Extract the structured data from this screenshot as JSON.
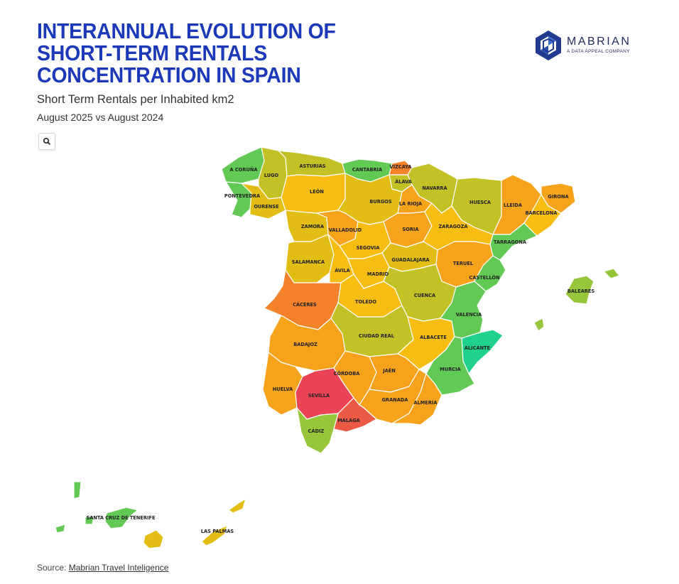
{
  "header": {
    "title": "INTERANNUAL EVOLUTION OF SHORT-TERM RENTALS CONCENTRATION IN SPAIN",
    "subtitle": "Short Term Rentals per Inhabited km2",
    "period": "August 2025 vs August 2024"
  },
  "logo": {
    "name": "MABRIAN",
    "tagline": "A DATA APPEAL COMPANY",
    "color": "#1f3a8f"
  },
  "toolbar": {
    "search_icon": "magnifier-icon"
  },
  "source": {
    "prefix": "Source: ",
    "link_text": "Mabrian Travel Inteligence"
  },
  "palette": {
    "teal": "#1fd18b",
    "green": "#62c955",
    "yellowgreen": "#97c63a",
    "olive": "#c2c226",
    "mustard": "#e2bd14",
    "amber": "#f7bd10",
    "orange": "#f7a21b",
    "darkorange": "#f3822b",
    "coral": "#ec5a45",
    "red": "#ea4356"
  },
  "provinces": [
    {
      "name": "A CORUÑA",
      "color": "green"
    },
    {
      "name": "LUGO",
      "color": "olive"
    },
    {
      "name": "ASTURIAS",
      "color": "olive"
    },
    {
      "name": "CANTABRIA",
      "color": "green"
    },
    {
      "name": "VIZCAYA",
      "color": "darkorange"
    },
    {
      "name": "ÁLAVA",
      "color": "olive"
    },
    {
      "name": "NAVARRA",
      "color": "olive"
    },
    {
      "name": "HUESCA",
      "color": "olive"
    },
    {
      "name": "LLEIDA",
      "color": "orange"
    },
    {
      "name": "GIRONA",
      "color": "orange"
    },
    {
      "name": "BARCELONA",
      "color": "amber"
    },
    {
      "name": "PONTEVEDRA",
      "color": "green"
    },
    {
      "name": "OURENSE",
      "color": "mustard"
    },
    {
      "name": "LEÓN",
      "color": "amber"
    },
    {
      "name": "BURGOS",
      "color": "mustard"
    },
    {
      "name": "LA RIOJA",
      "color": "orange"
    },
    {
      "name": "ZAMORA",
      "color": "mustard"
    },
    {
      "name": "VALLADOLID",
      "color": "orange"
    },
    {
      "name": "SORIA",
      "color": "orange"
    },
    {
      "name": "ZARAGOZA",
      "color": "amber"
    },
    {
      "name": "TARRAGONA",
      "color": "green"
    },
    {
      "name": "SEGOVIA",
      "color": "amber"
    },
    {
      "name": "SALAMANCA",
      "color": "mustard"
    },
    {
      "name": "ÁVILA",
      "color": "amber"
    },
    {
      "name": "GUADALAJARA",
      "color": "mustard"
    },
    {
      "name": "MADRID",
      "color": "amber"
    },
    {
      "name": "TERUEL",
      "color": "orange"
    },
    {
      "name": "CASTELLÓN",
      "color": "green"
    },
    {
      "name": "BALEARES",
      "color": "yellowgreen"
    },
    {
      "name": "CÁCERES",
      "color": "darkorange"
    },
    {
      "name": "TOLEDO",
      "color": "amber"
    },
    {
      "name": "CUENCA",
      "color": "olive"
    },
    {
      "name": "VALENCIA",
      "color": "green"
    },
    {
      "name": "CIUDAD REAL",
      "color": "olive"
    },
    {
      "name": "ALBACETE",
      "color": "amber"
    },
    {
      "name": "ALICANTE",
      "color": "teal"
    },
    {
      "name": "BADAJOZ",
      "color": "orange"
    },
    {
      "name": "CÓRDOBA",
      "color": "orange"
    },
    {
      "name": "JAÉN",
      "color": "orange"
    },
    {
      "name": "MURCIA",
      "color": "green"
    },
    {
      "name": "HUELVA",
      "color": "orange"
    },
    {
      "name": "SEVILLA",
      "color": "red"
    },
    {
      "name": "GRANADA",
      "color": "orange"
    },
    {
      "name": "ALMERÍA",
      "color": "orange"
    },
    {
      "name": "MÁLAGA",
      "color": "coral"
    },
    {
      "name": "CÁDIZ",
      "color": "yellowgreen"
    },
    {
      "name": "SANTA CRUZ DE TENERIFE",
      "color": "green"
    },
    {
      "name": "LAS PALMAS",
      "color": "mustard"
    }
  ]
}
